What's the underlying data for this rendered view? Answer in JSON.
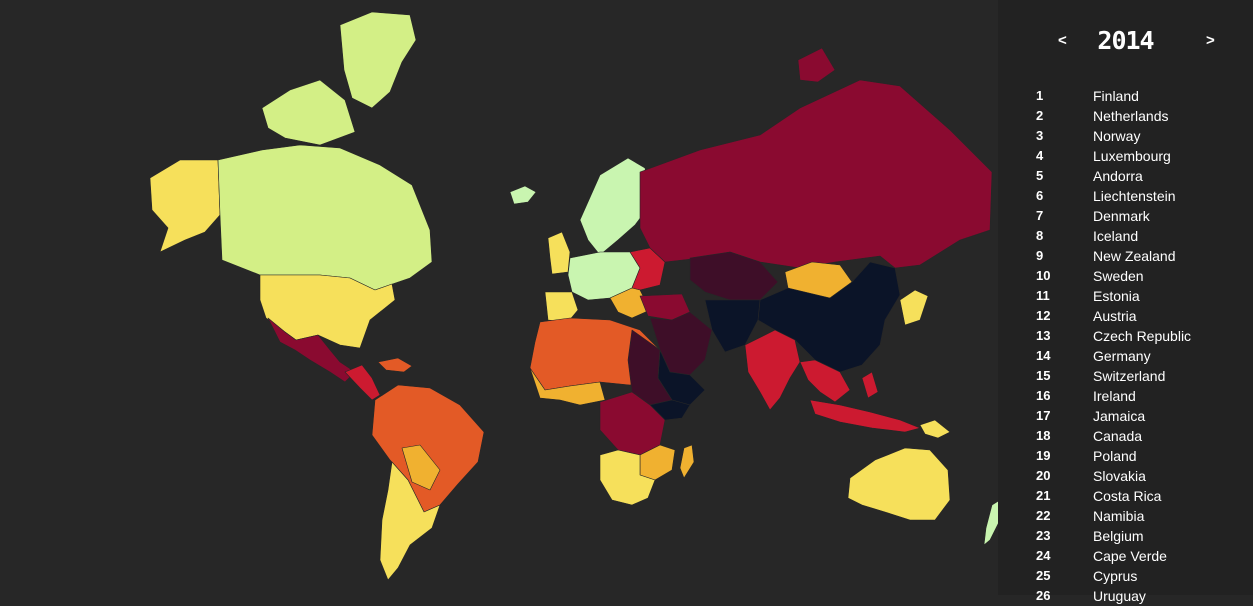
{
  "year_nav": {
    "prev_label": "<",
    "year": "2014",
    "next_label": ">"
  },
  "ranking": [
    {
      "rank": "1",
      "country": "Finland"
    },
    {
      "rank": "2",
      "country": "Netherlands"
    },
    {
      "rank": "3",
      "country": "Norway"
    },
    {
      "rank": "4",
      "country": "Luxembourg"
    },
    {
      "rank": "5",
      "country": "Andorra"
    },
    {
      "rank": "6",
      "country": "Liechtenstein"
    },
    {
      "rank": "7",
      "country": "Denmark"
    },
    {
      "rank": "8",
      "country": "Iceland"
    },
    {
      "rank": "9",
      "country": "New Zealand"
    },
    {
      "rank": "10",
      "country": "Sweden"
    },
    {
      "rank": "11",
      "country": "Estonia"
    },
    {
      "rank": "12",
      "country": "Austria"
    },
    {
      "rank": "13",
      "country": "Czech Republic"
    },
    {
      "rank": "14",
      "country": "Germany"
    },
    {
      "rank": "15",
      "country": "Switzerland"
    },
    {
      "rank": "16",
      "country": "Ireland"
    },
    {
      "rank": "17",
      "country": "Jamaica"
    },
    {
      "rank": "18",
      "country": "Canada"
    },
    {
      "rank": "19",
      "country": "Poland"
    },
    {
      "rank": "20",
      "country": "Slovakia"
    },
    {
      "rank": "21",
      "country": "Costa Rica"
    },
    {
      "rank": "22",
      "country": "Namibia"
    },
    {
      "rank": "23",
      "country": "Belgium"
    },
    {
      "rank": "24",
      "country": "Cape Verde"
    },
    {
      "rank": "25",
      "country": "Cyprus"
    },
    {
      "rank": "26",
      "country": "Uruguay"
    }
  ],
  "map_colors": {
    "background": "#272727",
    "best": "#c9f5b0",
    "good": "#d3ef86",
    "fair": "#f6e05b",
    "middle": "#f0b130",
    "problematic": "#e35a26",
    "difficult": "#cc1a30",
    "serious": "#8a0a30",
    "very_serious": "#3e0e28",
    "worst": "#0b1428"
  }
}
